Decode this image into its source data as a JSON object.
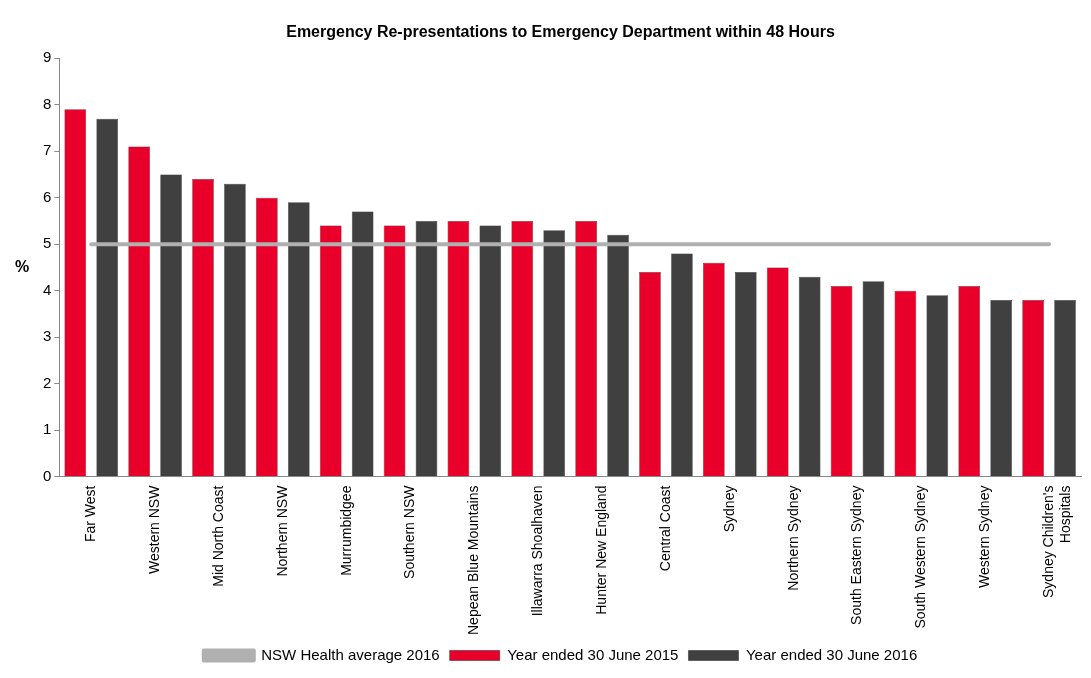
{
  "chart_data": {
    "type": "bar",
    "title": "Emergency Re-presentations to Emergency Department within 48 Hours",
    "ylabel": "%",
    "categories": [
      "Far West",
      "Western NSW",
      "Mid North Coast",
      "Northern NSW",
      "Murrumbidgee",
      "Southern NSW",
      "Nepean Blue Mountains",
      "Illawarra Shoalhaven",
      "Hunter New England",
      "Central Coast",
      "Sydney",
      "Northern Sydney",
      "South Eastern Sydney",
      "South Western Sydney",
      "Western Sydney",
      "Sydney Children's Hospitals"
    ],
    "series": [
      {
        "name": "Year ended 30 June 2015",
        "color": "#e8002b",
        "values": [
          7.9,
          7.1,
          6.4,
          6.0,
          5.4,
          5.4,
          5.5,
          5.5,
          5.5,
          4.4,
          4.6,
          4.5,
          4.1,
          4.0,
          4.1,
          3.8
        ]
      },
      {
        "name": "Year ended 30 June 2016",
        "color": "#404040",
        "values": [
          7.7,
          6.5,
          6.3,
          5.9,
          5.7,
          5.5,
          5.4,
          5.3,
          5.2,
          4.8,
          4.4,
          4.3,
          4.2,
          3.9,
          3.8,
          3.8
        ]
      },
      {
        "name": "NSW Health average 2016",
        "type": "line",
        "color": "#b0b0b0",
        "values": [
          5,
          5,
          5,
          5,
          5,
          5,
          5,
          5,
          5,
          5,
          5,
          5,
          5,
          5,
          5,
          5
        ]
      }
    ],
    "ylim": [
      0,
      9
    ],
    "yticks": [
      0,
      1,
      2,
      3,
      4,
      5,
      6,
      7,
      8,
      9
    ],
    "grid": false,
    "legend": "bottom",
    "marker": "none"
  }
}
